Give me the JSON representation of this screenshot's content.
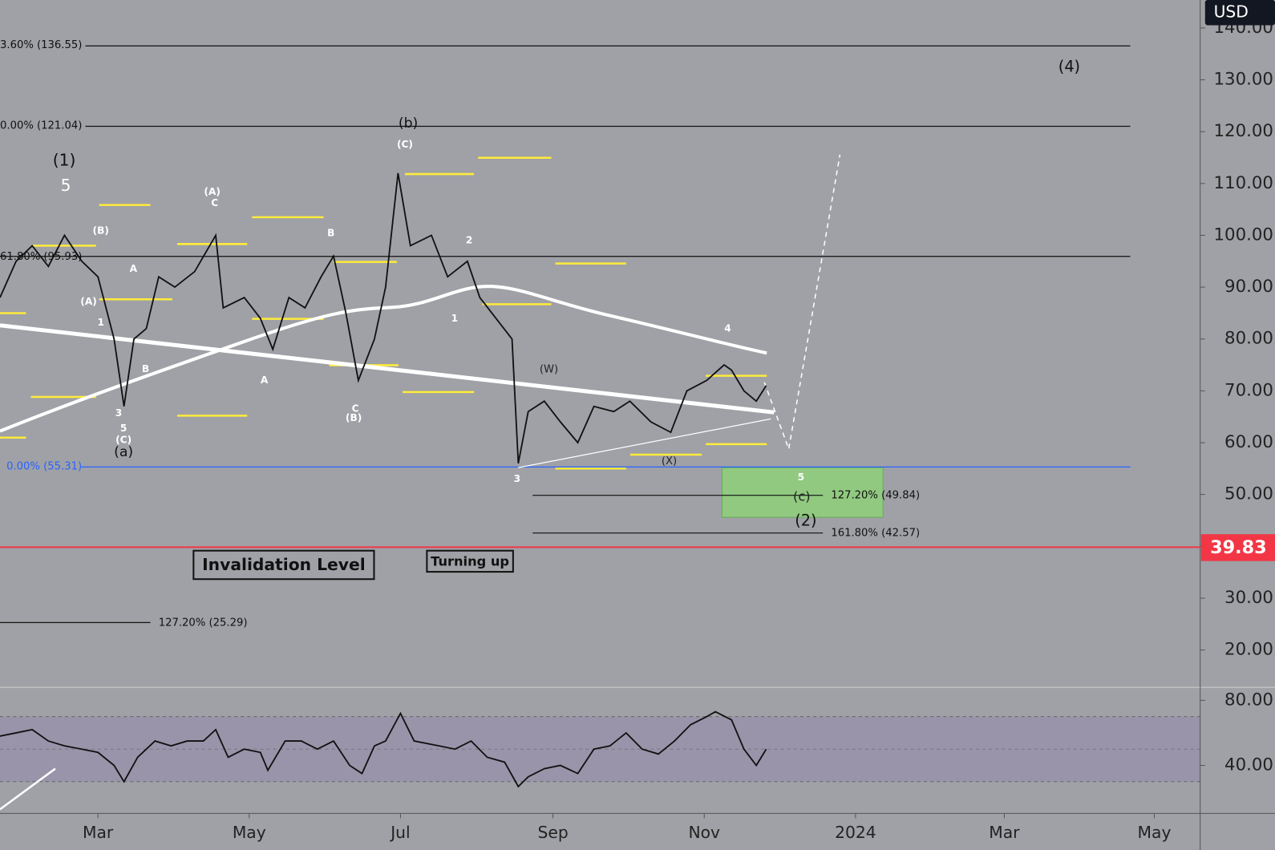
{
  "chart_data": [
    {
      "type": "line",
      "currency": "USD",
      "xlim": [
        0,
        968
      ],
      "ylim": [
        12.8,
        145.4
      ],
      "yticks": [
        {
          "value": 20,
          "label": "20.00"
        },
        {
          "value": 30,
          "label": "30.00"
        },
        {
          "value": 40,
          "label": "40.00"
        },
        {
          "value": 50,
          "label": "50.00"
        },
        {
          "value": 60,
          "label": "60.00"
        },
        {
          "value": 70,
          "label": "70.00"
        },
        {
          "value": 80,
          "label": "80.00"
        },
        {
          "value": 90,
          "label": "90.00"
        },
        {
          "value": 100,
          "label": "100.00"
        },
        {
          "value": 110,
          "label": "110.00"
        },
        {
          "value": 120,
          "label": "120.00"
        },
        {
          "value": 130,
          "label": "130.00"
        },
        {
          "value": 140,
          "label": "140.00"
        }
      ],
      "series": [
        {
          "color": "#111111",
          "x": [
            0,
            13,
            26,
            39,
            52,
            66,
            79,
            92,
            100,
            108,
            118,
            128,
            141,
            157,
            174,
            180,
            197,
            210,
            220,
            233,
            246,
            259,
            269,
            279,
            289,
            302,
            311,
            321,
            331,
            348,
            361,
            377,
            387,
            400,
            413,
            418,
            426,
            439,
            452,
            466,
            479,
            495,
            508,
            525,
            541,
            554,
            570,
            584,
            590,
            600,
            610,
            618
          ],
          "values": [
            88,
            95,
            98,
            94,
            100,
            95,
            92,
            80,
            67,
            80,
            82,
            92,
            90,
            93,
            100,
            86,
            88,
            84,
            78,
            88,
            86,
            92,
            96,
            85,
            72,
            80,
            90,
            112,
            98,
            100,
            92,
            95,
            88,
            84,
            80,
            56,
            66,
            68,
            64,
            60,
            67,
            66,
            68,
            64,
            62,
            70,
            72,
            75,
            74,
            70,
            68,
            71
          ]
        }
      ],
      "fib_levels": [
        {
          "value": 136.55,
          "label": "3.60% (136.55)",
          "color": "#111111"
        },
        {
          "value": 121.04,
          "label": "0.00% (121.04)",
          "color": "#111111"
        },
        {
          "value": 95.93,
          "label": "61.80% (95.93)",
          "color": "#111111"
        },
        {
          "value": 55.31,
          "label": "0.00% (55.31)",
          "color": "#2962ff"
        },
        {
          "value": 49.84,
          "label": "127.20% (49.84)",
          "color": "#111111"
        },
        {
          "value": 42.57,
          "label": "161.80% (42.57)",
          "color": "#111111"
        },
        {
          "value": 25.29,
          "label": "127.20% (25.29)",
          "color": "#111111"
        }
      ],
      "price_line": 39.83,
      "price_line_color": "#f23645",
      "annotations": [
        "(1)",
        "5",
        "(b)",
        "(C)",
        "(4)",
        "(2)",
        "(c)",
        "(a)",
        "(W)",
        "(X)",
        "(A)",
        "C",
        "(B)",
        "A",
        "(A)",
        "1",
        "B",
        "3",
        "5",
        "(C)",
        "B",
        "A",
        "C",
        "(B)",
        "2",
        "1",
        "3",
        "4",
        "5"
      ],
      "boxes": [
        "Invalidation Level",
        "Turning up"
      ]
    },
    {
      "type": "line",
      "xlim": [
        0,
        968
      ],
      "ylim": [
        10.5,
        86.5
      ],
      "yticks": [
        {
          "value": 40,
          "label": "40.00"
        },
        {
          "value": 80,
          "label": "80.00"
        }
      ],
      "xticks": [
        {
          "value": 79,
          "label": "Mar"
        },
        {
          "value": 201,
          "label": "May"
        },
        {
          "value": 323,
          "label": "Jul"
        },
        {
          "value": 446,
          "label": "Sep"
        },
        {
          "value": 568,
          "label": "Nov"
        },
        {
          "value": 690,
          "label": "2024"
        },
        {
          "value": 810,
          "label": "Mar"
        },
        {
          "value": 931,
          "label": "May"
        }
      ],
      "series": [
        {
          "color": "#111111",
          "x": [
            0,
            13,
            26,
            39,
            52,
            66,
            79,
            92,
            100,
            111,
            125,
            138,
            151,
            164,
            174,
            184,
            197,
            210,
            216,
            230,
            243,
            256,
            269,
            282,
            292,
            302,
            311,
            323,
            334,
            354,
            367,
            380,
            393,
            407,
            418,
            426,
            439,
            452,
            466,
            479,
            492,
            505,
            518,
            531,
            544,
            557,
            570,
            577,
            590,
            600,
            610,
            618
          ],
          "values": [
            58,
            60,
            62,
            55,
            52,
            50,
            48,
            40,
            30,
            45,
            55,
            52,
            55,
            55,
            62,
            45,
            50,
            48,
            37,
            55,
            55,
            50,
            55,
            40,
            35,
            52,
            55,
            72,
            55,
            52,
            50,
            55,
            45,
            42,
            27,
            33,
            38,
            40,
            35,
            50,
            52,
            60,
            50,
            47,
            55,
            65,
            70,
            73,
            68,
            50,
            40,
            50
          ]
        }
      ]
    }
  ]
}
